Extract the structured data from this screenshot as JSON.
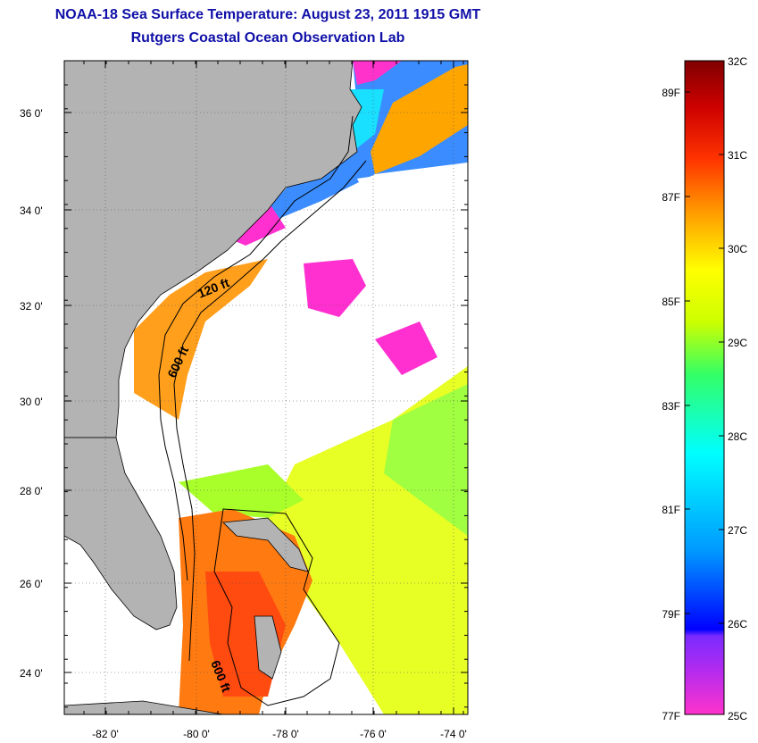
{
  "header": {
    "title": "NOAA-18 Sea Surface Temperature:  August 23, 2011 1915 GMT",
    "subtitle": "Rutgers Coastal Ocean Observation Lab"
  },
  "map": {
    "lat_labels": [
      "36 0'",
      "34 0'",
      "32 0'",
      "30 0'",
      "28 0'",
      "26 0'",
      "24 0'"
    ],
    "lon_labels": [
      "-82 0'",
      "-80 0'",
      "-78 0'",
      "-76 0'",
      "-74 0'"
    ],
    "contour_labels": {
      "shelf_north": "120 ft",
      "shelf_mid": "600 ft",
      "shelf_south": "600 ft"
    },
    "colors": {
      "land": "#b3b3b3",
      "cloud": "#ffffff"
    }
  },
  "colorbar": {
    "celsius_labels": [
      "32C",
      "31C",
      "30C",
      "29C",
      "28C",
      "27C",
      "26C",
      "25C"
    ],
    "fahrenheit_labels": [
      "89F",
      "87F",
      "85F",
      "83F",
      "81F",
      "79F",
      "77F"
    ],
    "colors": [
      "#ff33cc",
      "#7a2bff",
      "#0000ff",
      "#0099ff",
      "#00ffff",
      "#33ff66",
      "#ccff00",
      "#ffff00",
      "#ff9900",
      "#ff3300",
      "#cc0000",
      "#800000"
    ]
  }
}
